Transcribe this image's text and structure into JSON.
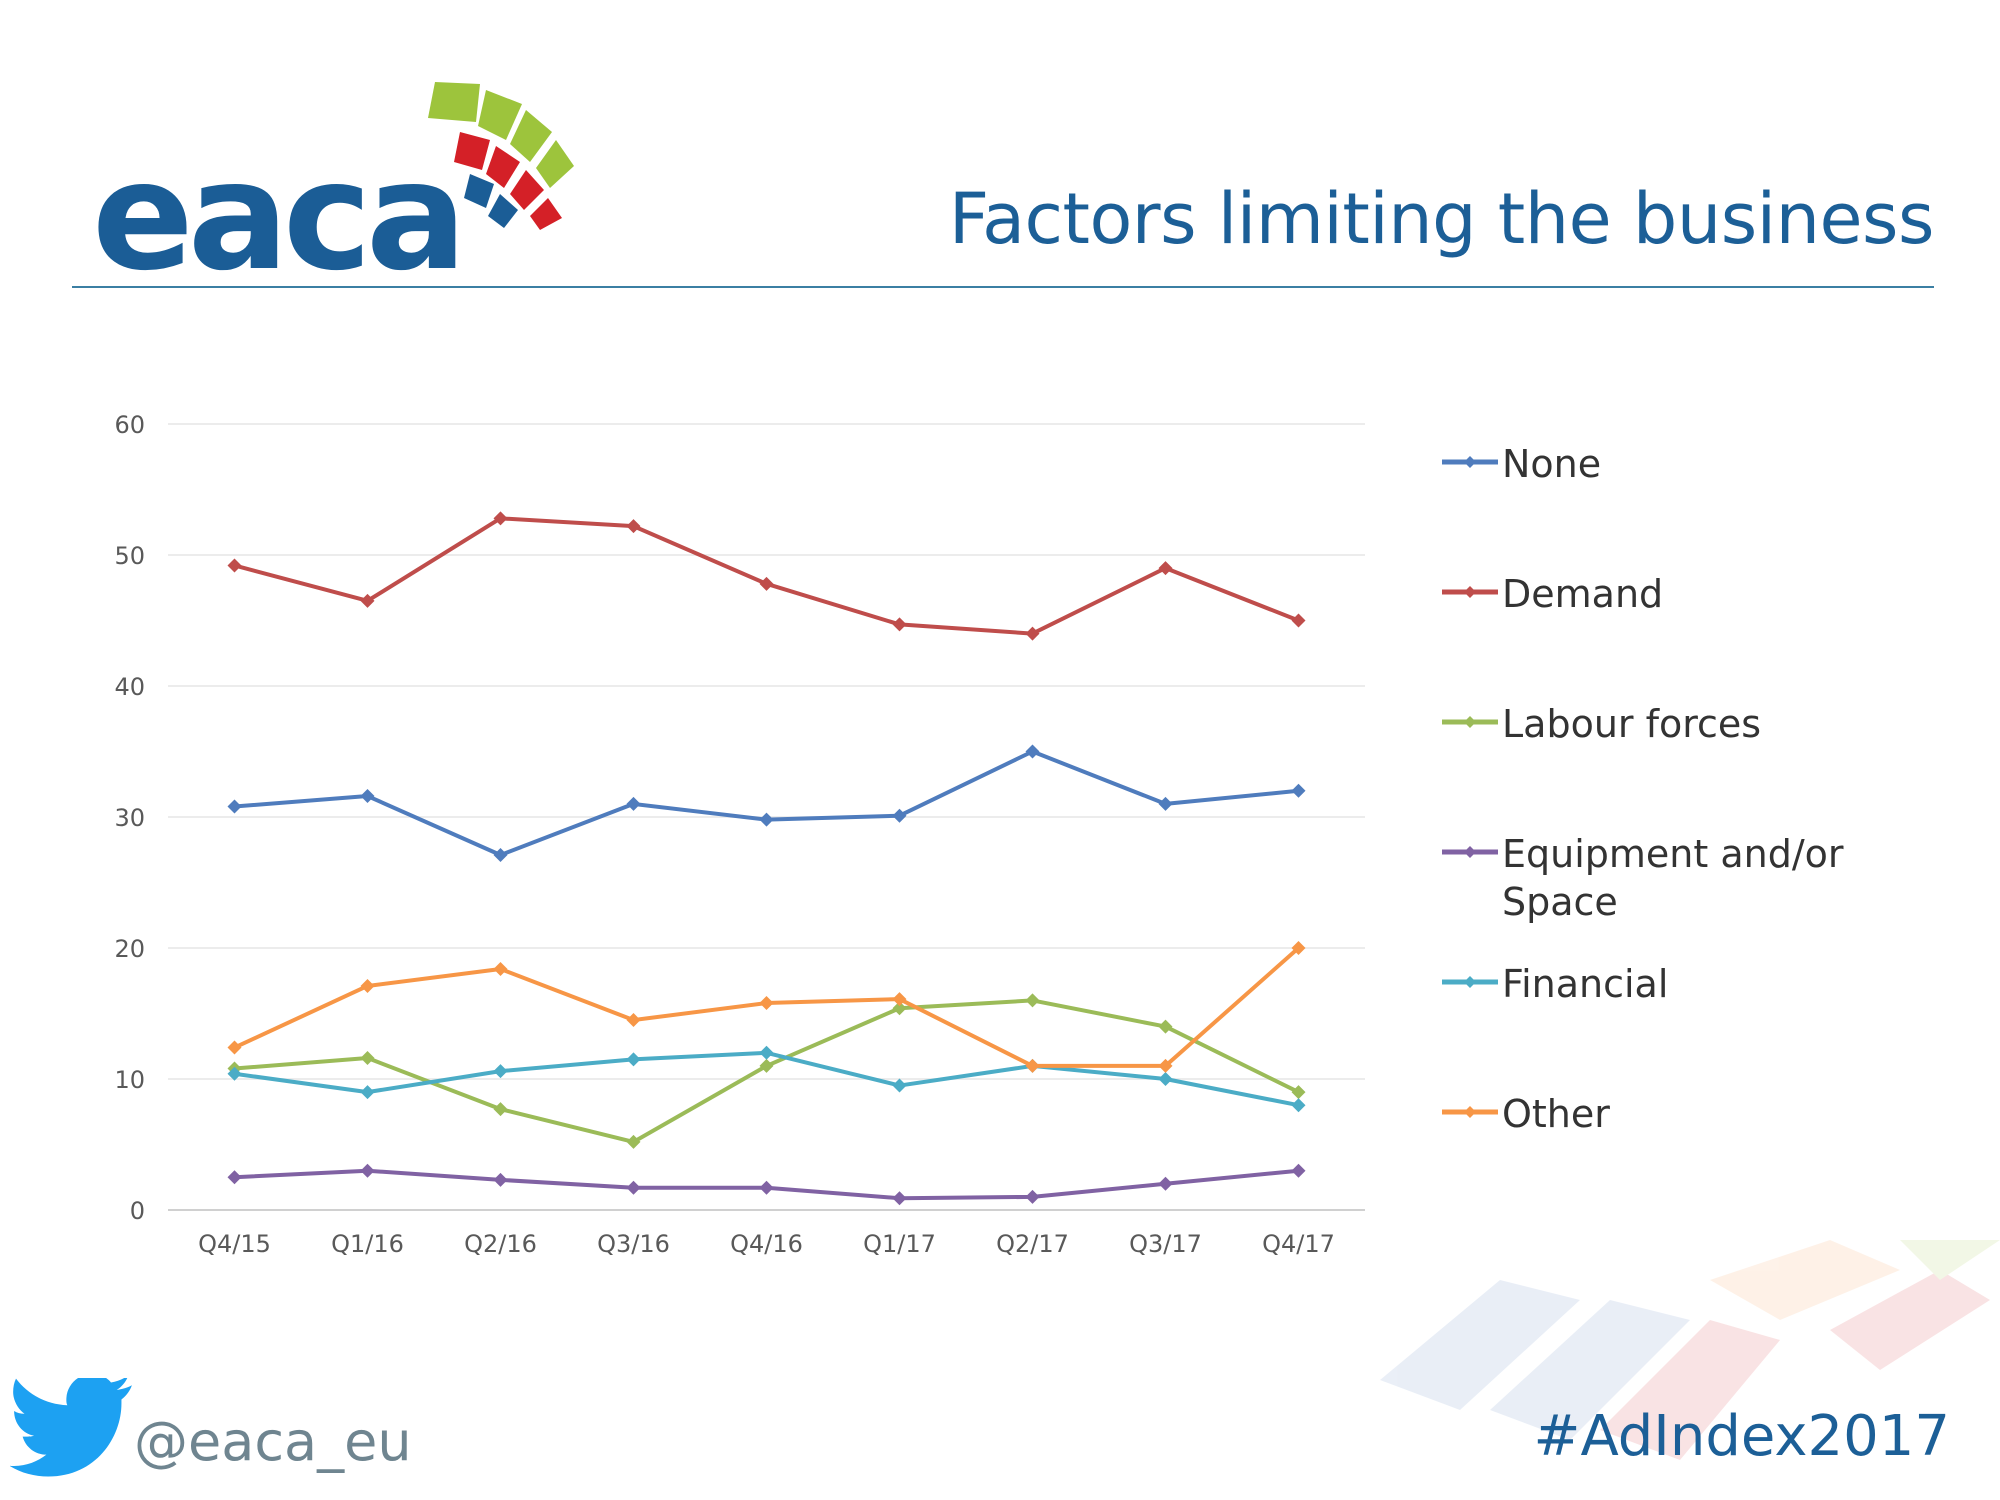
{
  "header": {
    "logo_text": "eaca",
    "title": "Factors limiting the business"
  },
  "footer": {
    "twitter_handle": "@eaca_eu",
    "hashtag": "#AdIndex2017"
  },
  "colors": {
    "title": "#1c5f97",
    "rule": "#3b7fa3",
    "logo_blue": "#1b5d96",
    "logo_green": "#9dc43c",
    "logo_red": "#d42027",
    "twitter": "#1da1f2"
  },
  "chart_data": {
    "type": "line",
    "title": "",
    "xlabel": "",
    "ylabel": "",
    "ylim": [
      0,
      60
    ],
    "yticks": [
      0,
      10,
      20,
      30,
      40,
      50,
      60
    ],
    "grid": true,
    "legend_position": "right",
    "categories": [
      "Q4/15",
      "Q1/16",
      "Q2/16",
      "Q3/16",
      "Q4/16",
      "Q1/17",
      "Q2/17",
      "Q3/17",
      "Q4/17"
    ],
    "series": [
      {
        "name": "None",
        "color": "#4f7cbd",
        "values": [
          30.8,
          31.6,
          27.1,
          31.0,
          29.8,
          30.1,
          35.0,
          31.0,
          32.0
        ]
      },
      {
        "name": "Demand",
        "color": "#bf4d4b",
        "values": [
          49.2,
          46.5,
          52.8,
          52.2,
          47.8,
          44.7,
          44.0,
          49.0,
          45.0
        ]
      },
      {
        "name": "Labour forces",
        "color": "#9bbb58",
        "values": [
          10.8,
          11.6,
          7.7,
          5.2,
          11.0,
          15.4,
          16.0,
          14.0,
          9.0
        ]
      },
      {
        "name": "Equipment and/or Space",
        "color": "#8062a3",
        "values": [
          2.5,
          3.0,
          2.3,
          1.7,
          1.7,
          0.9,
          1.0,
          2.0,
          3.0
        ]
      },
      {
        "name": "Financial",
        "color": "#4bacc6",
        "values": [
          10.4,
          9.0,
          10.6,
          11.5,
          12.0,
          9.5,
          11.0,
          10.0,
          8.0
        ]
      },
      {
        "name": "Other",
        "color": "#f79646",
        "values": [
          12.4,
          17.1,
          18.4,
          14.5,
          15.8,
          16.1,
          11.0,
          11.0,
          20.0
        ]
      }
    ]
  }
}
